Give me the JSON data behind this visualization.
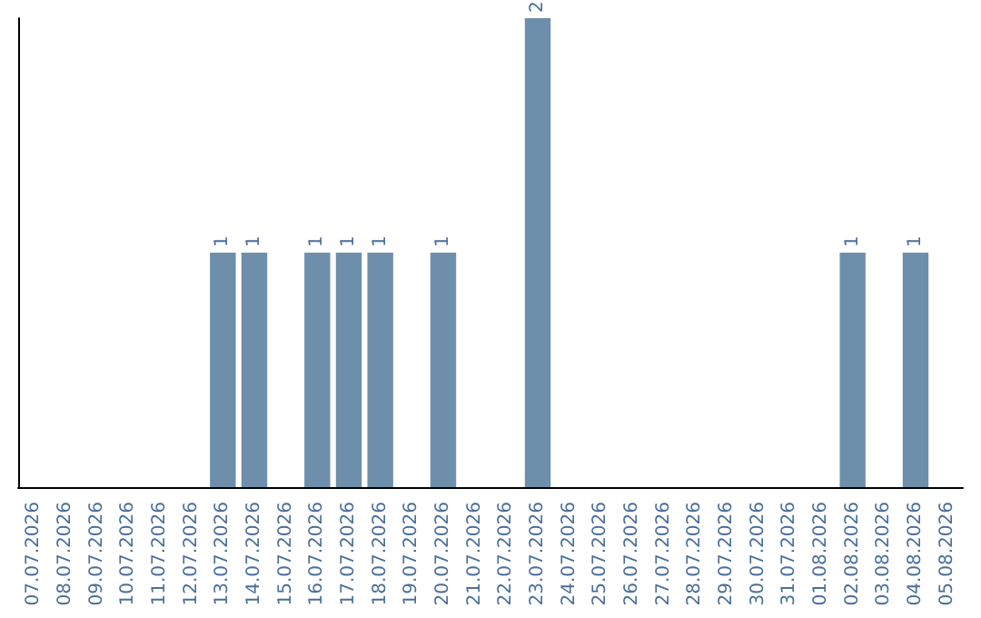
{
  "chart_data": {
    "type": "bar",
    "categories": [
      "07.07.2026",
      "08.07.2026",
      "09.07.2026",
      "10.07.2026",
      "11.07.2026",
      "12.07.2026",
      "13.07.2026",
      "14.07.2026",
      "15.07.2026",
      "16.07.2026",
      "17.07.2026",
      "18.07.2026",
      "19.07.2026",
      "20.07.2026",
      "21.07.2026",
      "22.07.2026",
      "23.07.2026",
      "24.07.2026",
      "25.07.2026",
      "26.07.2026",
      "27.07.2026",
      "28.07.2026",
      "29.07.2026",
      "30.07.2026",
      "31.07.2026",
      "01.08.2026",
      "02.08.2026",
      "03.08.2026",
      "04.08.2026",
      "05.08.2026"
    ],
    "values": [
      0,
      0,
      0,
      0,
      0,
      0,
      1,
      1,
      0,
      1,
      1,
      1,
      0,
      1,
      0,
      0,
      2,
      0,
      0,
      0,
      0,
      0,
      0,
      0,
      0,
      0,
      1,
      0,
      1,
      0
    ],
    "value_labels": [
      null,
      null,
      null,
      null,
      null,
      null,
      "1",
      "1",
      null,
      "1",
      "1",
      "1",
      null,
      "1",
      null,
      null,
      "2",
      null,
      null,
      null,
      null,
      null,
      null,
      null,
      null,
      null,
      "1",
      null,
      "1",
      null
    ],
    "color": "#6e8fac",
    "tick_labels": "x",
    "grid": false
  }
}
